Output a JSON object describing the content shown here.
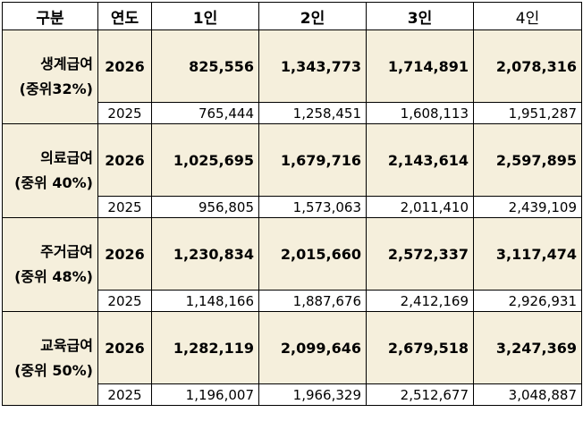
{
  "header": {
    "category": "구분",
    "year": "연도",
    "p1": "1인",
    "p2": "2인",
    "p3": "3인",
    "p4": "4인"
  },
  "groups": [
    {
      "name": "생계급여",
      "sub": "(중위32%)",
      "y2026": {
        "year": "2026",
        "v1": "825,556",
        "v2": "1,343,773",
        "v3": "1,714,891",
        "v4": "2,078,316"
      },
      "y2025": {
        "year": "2025",
        "v1": "765,444",
        "v2": "1,258,451",
        "v3": "1,608,113",
        "v4": "1,951,287"
      }
    },
    {
      "name": "의료급여",
      "sub": "(중위 40%)",
      "y2026": {
        "year": "2026",
        "v1": "1,025,695",
        "v2": "1,679,716",
        "v3": "2,143,614",
        "v4": "2,597,895"
      },
      "y2025": {
        "year": "2025",
        "v1": "956,805",
        "v2": "1,573,063",
        "v3": "2,011,410",
        "v4": "2,439,109"
      }
    },
    {
      "name": "주거급여",
      "sub": "(중위 48%)",
      "y2026": {
        "year": "2026",
        "v1": "1,230,834",
        "v2": "2,015,660",
        "v3": "2,572,337",
        "v4": "3,117,474"
      },
      "y2025": {
        "year": "2025",
        "v1": "1,148,166",
        "v2": "1,887,676",
        "v3": "2,412,169",
        "v4": "2,926,931"
      }
    },
    {
      "name": "교육급여",
      "sub": "(중위 50%)",
      "y2026": {
        "year": "2026",
        "v1": "1,282,119",
        "v2": "2,099,646",
        "v3": "2,679,518",
        "v4": "3,247,369"
      },
      "y2025": {
        "year": "2025",
        "v1": "1,196,007",
        "v2": "1,966,329",
        "v3": "2,512,677",
        "v4": "3,048,887"
      }
    }
  ]
}
